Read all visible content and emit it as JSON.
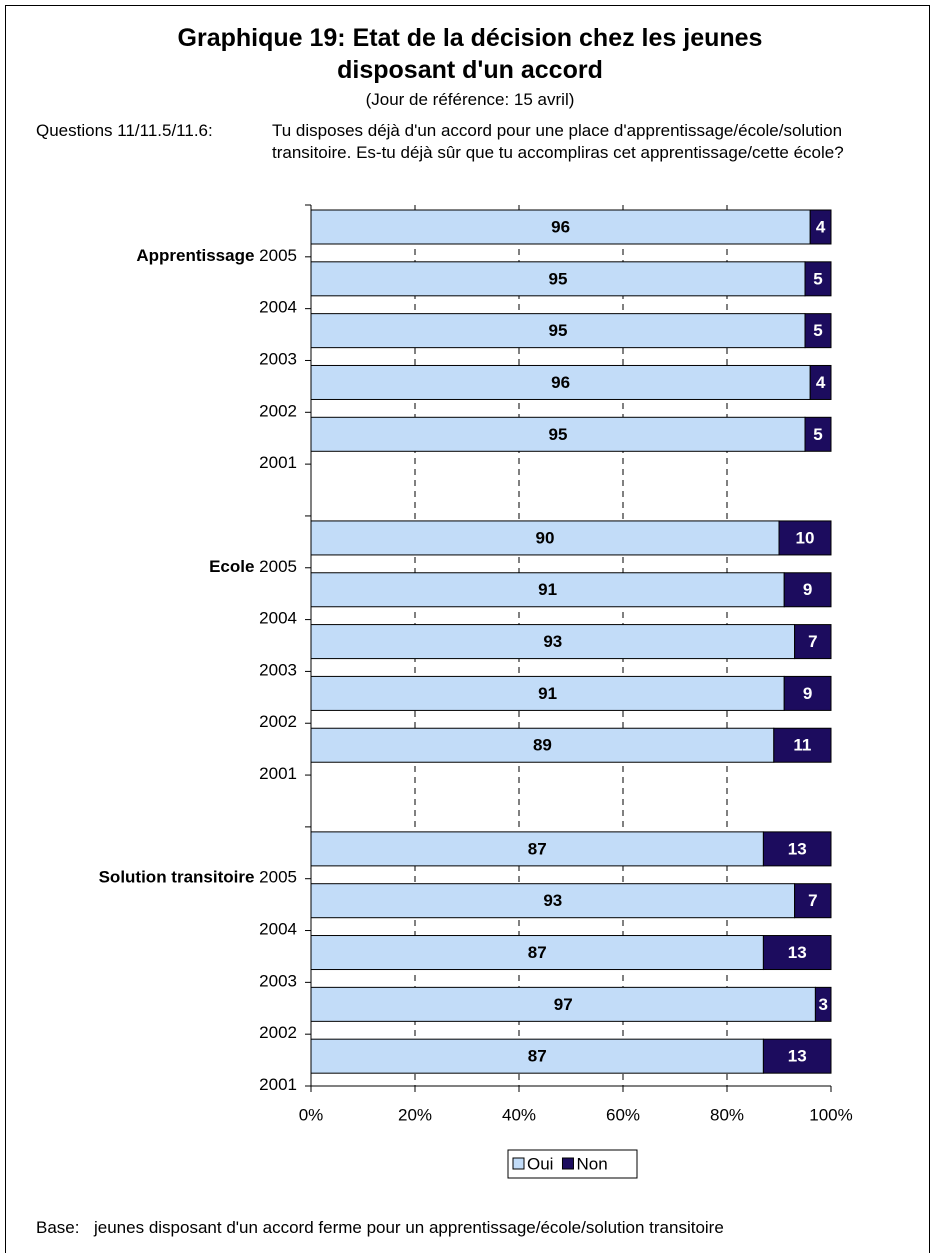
{
  "chart_data": {
    "type": "stacked-barh",
    "title": "Graphique 19: Etat de la décision chez les jeunes disposant d'un accord",
    "subtitle": "(Jour de référence: 15 avril)",
    "question_label": "Questions 11/11.5/11.6:",
    "question": "Tu disposes déjà d'un accord pour une place d'apprentissage/école/solution transitoire. Es-tu déjà sûr que tu accompliras cet apprentissage/cette école?",
    "groups": [
      "Apprentissage",
      "Ecole",
      "Solution transitoire"
    ],
    "categories": [
      "2005",
      "2004",
      "2003",
      "2002",
      "2001",
      null,
      "2005",
      "2004",
      "2003",
      "2002",
      "2001",
      null,
      "2005",
      "2004",
      "2003",
      "2002",
      "2001"
    ],
    "series": [
      {
        "name": "Oui",
        "color": "#c2dcf8",
        "label_color": "#000000",
        "values": [
          96,
          95,
          95,
          96,
          95,
          null,
          90,
          91,
          93,
          91,
          89,
          null,
          87,
          93,
          87,
          97,
          87
        ]
      },
      {
        "name": "Non",
        "color": "#1c0c5e",
        "label_color": "#ffffff",
        "values": [
          4,
          5,
          5,
          4,
          5,
          null,
          10,
          9,
          7,
          9,
          11,
          null,
          13,
          7,
          13,
          3,
          13
        ]
      }
    ],
    "xlim": [
      0,
      100
    ],
    "xticks": [
      {
        "value": 0,
        "label": "0%"
      },
      {
        "value": 20,
        "label": "20%"
      },
      {
        "value": 40,
        "label": "40%"
      },
      {
        "value": 60,
        "label": "60%"
      },
      {
        "value": 80,
        "label": "80%"
      },
      {
        "value": 100,
        "label": "100%"
      }
    ],
    "grid": true,
    "legend": "bottom",
    "footnote_label": "Base:",
    "footnote": "jeunes disposant d'un accord ferme pour un apprentissage/école/solution transitoire"
  }
}
